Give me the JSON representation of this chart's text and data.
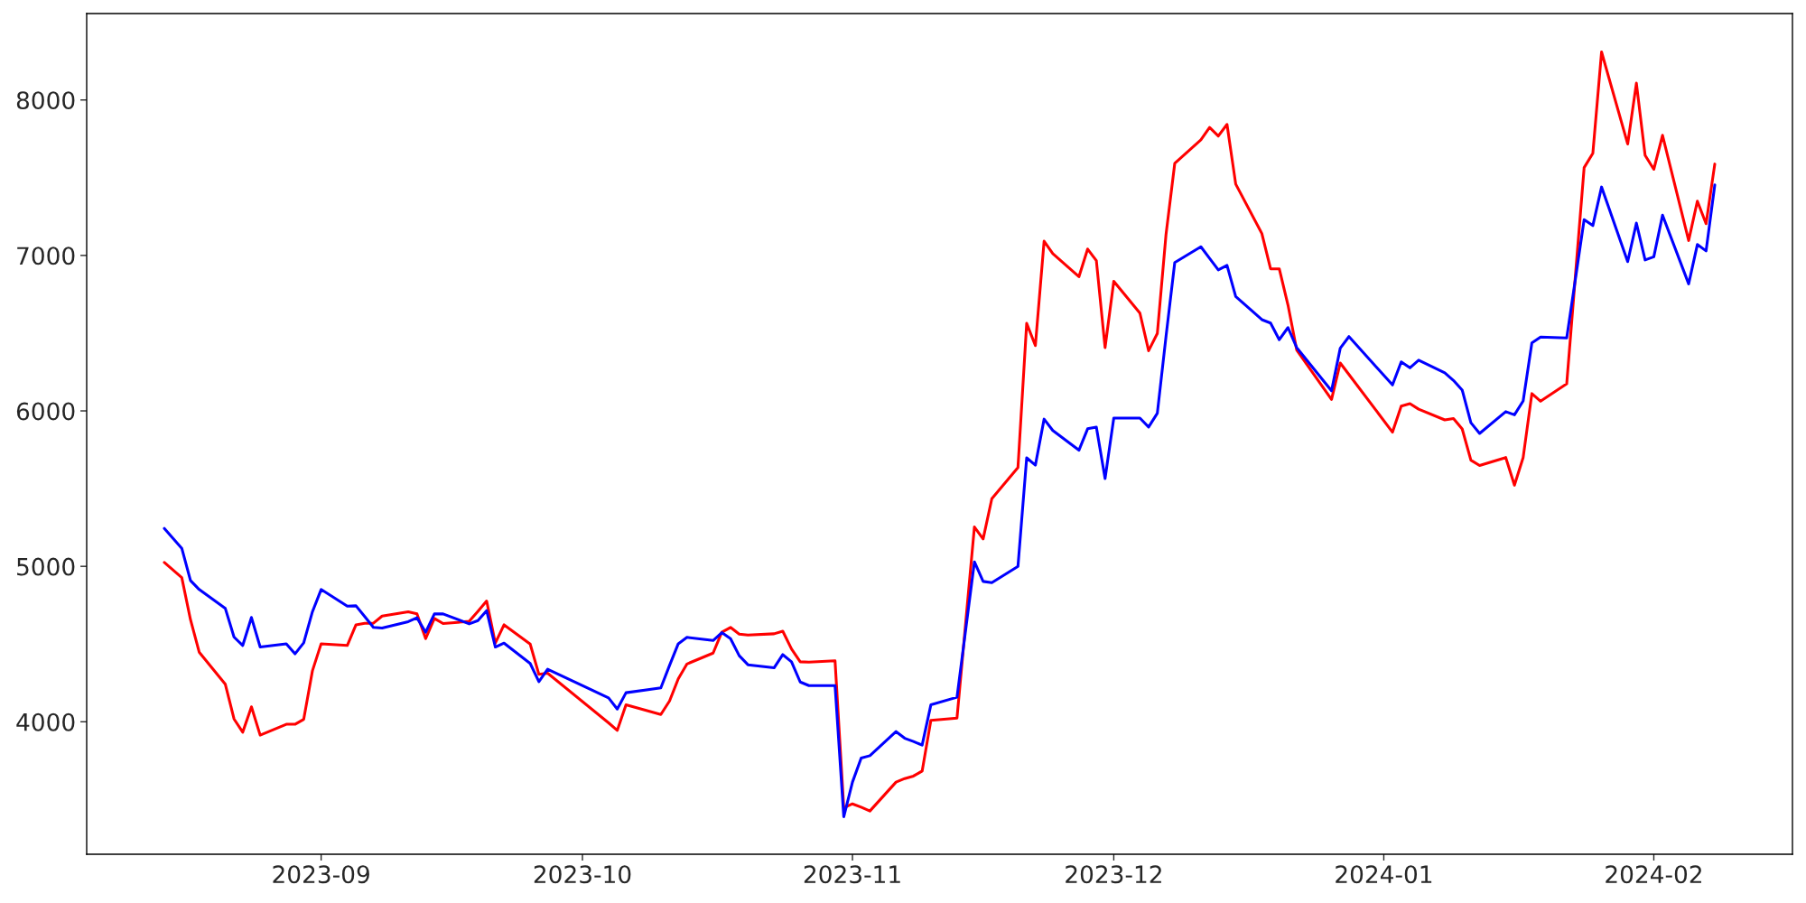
{
  "chart_data": {
    "type": "line",
    "x": [
      "2023-08-14",
      "2023-08-16",
      "2023-08-17",
      "2023-08-18",
      "2023-08-21",
      "2023-08-22",
      "2023-08-23",
      "2023-08-24",
      "2023-08-25",
      "2023-08-28",
      "2023-08-29",
      "2023-08-30",
      "2023-08-31",
      "2023-09-01",
      "2023-09-04",
      "2023-09-05",
      "2023-09-06",
      "2023-09-07",
      "2023-09-08",
      "2023-09-11",
      "2023-09-12",
      "2023-09-13",
      "2023-09-14",
      "2023-09-15",
      "2023-09-18",
      "2023-09-19",
      "2023-09-20",
      "2023-09-21",
      "2023-09-22",
      "2023-09-25",
      "2023-09-26",
      "2023-09-27",
      "2023-10-04",
      "2023-10-05",
      "2023-10-06",
      "2023-10-10",
      "2023-10-11",
      "2023-10-12",
      "2023-10-13",
      "2023-10-16",
      "2023-10-17",
      "2023-10-18",
      "2023-10-19",
      "2023-10-20",
      "2023-10-23",
      "2023-10-24",
      "2023-10-25",
      "2023-10-26",
      "2023-10-27",
      "2023-10-30",
      "2023-10-31",
      "2023-11-01",
      "2023-11-02",
      "2023-11-03",
      "2023-11-06",
      "2023-11-07",
      "2023-11-08",
      "2023-11-09",
      "2023-11-10",
      "2023-11-13",
      "2023-11-14",
      "2023-11-15",
      "2023-11-16",
      "2023-11-17",
      "2023-11-20",
      "2023-11-21",
      "2023-11-22",
      "2023-11-23",
      "2023-11-24",
      "2023-11-27",
      "2023-11-28",
      "2023-11-29",
      "2023-11-30",
      "2023-12-01",
      "2023-12-04",
      "2023-12-05",
      "2023-12-06",
      "2023-12-07",
      "2023-12-08",
      "2023-12-11",
      "2023-12-12",
      "2023-12-13",
      "2023-12-14",
      "2023-12-15",
      "2023-12-18",
      "2023-12-19",
      "2023-12-20",
      "2023-12-21",
      "2023-12-22",
      "2023-12-26",
      "2023-12-27",
      "2023-12-28",
      "2024-01-02",
      "2024-01-03",
      "2024-01-04",
      "2024-01-05",
      "2024-01-08",
      "2024-01-09",
      "2024-01-10",
      "2024-01-11",
      "2024-01-12",
      "2024-01-15",
      "2024-01-16",
      "2024-01-17",
      "2024-01-18",
      "2024-01-19",
      "2024-01-22",
      "2024-01-23",
      "2024-01-24",
      "2024-01-25",
      "2024-01-26",
      "2024-01-29",
      "2024-01-30",
      "2024-01-31",
      "2024-02-01",
      "2024-02-02",
      "2024-02-05",
      "2024-02-06",
      "2024-02-07",
      "2024-02-08"
    ],
    "series": [
      {
        "color": "#ff0000",
        "values": [
          5025,
          4928,
          4657,
          4448,
          4241,
          4018,
          3933,
          4096,
          3914,
          3984,
          3984,
          4016,
          4328,
          4502,
          4491,
          4624,
          4634,
          4634,
          4680,
          4708,
          4694,
          4535,
          4665,
          4632,
          4646,
          4711,
          4777,
          4506,
          4624,
          4500,
          4305,
          4313,
          3993,
          3945,
          4109,
          4047,
          4134,
          4276,
          4372,
          4442,
          4576,
          4607,
          4564,
          4558,
          4566,
          4583,
          4469,
          4386,
          4384,
          4392,
          3447,
          3472,
          3451,
          3426,
          3612,
          3635,
          3651,
          3683,
          4009,
          4024,
          4638,
          5253,
          5176,
          5435,
          5636,
          6563,
          6420,
          7092,
          7012,
          6863,
          7041,
          6967,
          6407,
          6834,
          6629,
          6387,
          6498,
          7136,
          7592,
          7743,
          7823,
          7768,
          7843,
          7459,
          7141,
          6914,
          6914,
          6681,
          6392,
          6074,
          6308,
          6234,
          5863,
          6031,
          6047,
          6011,
          5942,
          5951,
          5884,
          5683,
          5649,
          5700,
          5522,
          5700,
          6111,
          6062,
          6174,
          6871,
          7565,
          7657,
          8309,
          7717,
          8108,
          7644,
          7554,
          7773,
          7096,
          7349,
          7204,
          7588
        ]
      },
      {
        "color": "#0000ff",
        "values": [
          5244,
          5116,
          4909,
          4851,
          4729,
          4545,
          4491,
          4671,
          4481,
          4502,
          4437,
          4508,
          4708,
          4851,
          4744,
          4746,
          4677,
          4607,
          4603,
          4644,
          4669,
          4576,
          4694,
          4694,
          4630,
          4651,
          4715,
          4481,
          4506,
          4375,
          4258,
          4338,
          4154,
          4082,
          4187,
          4218,
          4363,
          4502,
          4543,
          4523,
          4574,
          4535,
          4425,
          4367,
          4347,
          4432,
          4386,
          4256,
          4233,
          4233,
          3389,
          3612,
          3767,
          3782,
          3937,
          3894,
          3873,
          3850,
          4109,
          4158,
          4593,
          5029,
          4903,
          4895,
          5000,
          5698,
          5651,
          5947,
          5874,
          5747,
          5885,
          5896,
          5565,
          5954,
          5954,
          5896,
          5985,
          6480,
          6954,
          7056,
          6981,
          6907,
          6936,
          6736,
          6587,
          6565,
          6458,
          6536,
          6407,
          6129,
          6403,
          6478,
          6167,
          6315,
          6277,
          6326,
          6245,
          6196,
          6134,
          5924,
          5855,
          5995,
          5975,
          6064,
          6437,
          6475,
          6469,
          6848,
          7230,
          7192,
          7440,
          6960,
          7208,
          6971,
          6991,
          7259,
          6817,
          7070,
          7029,
          7454
        ]
      }
    ],
    "xlim": [
      "2023-08-05T02:00",
      "2024-02-16T22:00"
    ],
    "xticks": [
      {
        "value": "2023-09-01",
        "label": "2023-09"
      },
      {
        "value": "2023-10-01",
        "label": "2023-10"
      },
      {
        "value": "2023-11-01",
        "label": "2023-11"
      },
      {
        "value": "2023-12-01",
        "label": "2023-12"
      },
      {
        "value": "2024-01-01",
        "label": "2024-01"
      },
      {
        "value": "2024-02-01",
        "label": "2024-02"
      }
    ],
    "ylim": [
      3148,
      8556
    ],
    "yticks": [
      4000,
      5000,
      6000,
      7000,
      8000
    ]
  }
}
